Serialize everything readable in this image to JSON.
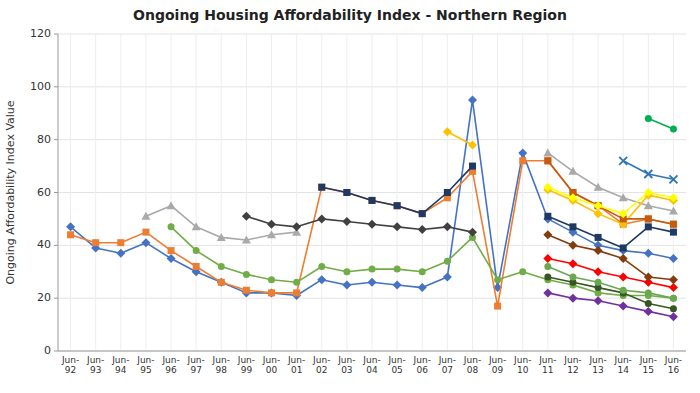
{
  "chart_data": {
    "type": "line",
    "title": "Ongoing Housing Affordability Index - Northern Region",
    "y_label": "Ongoing Affordability Index Value",
    "ylim": [
      0,
      120
    ],
    "yticks": [
      0,
      20,
      40,
      60,
      80,
      100,
      120
    ],
    "grid": true,
    "categories": [
      "Jun-\n92",
      "Jun-\n93",
      "Jun-\n94",
      "Jun-\n95",
      "Jun-\n96",
      "Jun-\n97",
      "Jun-\n98",
      "Jun-\n99",
      "Jun-\n00",
      "Jun-\n01",
      "Jun-\n02",
      "Jun-\n03",
      "Jun-\n04",
      "Jun-\n05",
      "Jun-\n06",
      "Jun-\n07",
      "Jun-\n08",
      "Jun-\n09",
      "Jun-\n10",
      "Jun-\n11",
      "Jun-\n12",
      "Jun-\n13",
      "Jun-\n14",
      "Jun-\n15",
      "Jun-\n16"
    ],
    "series": [
      {
        "color": "#4472C4",
        "marker": "diamond",
        "values": [
          47,
          39,
          37,
          41,
          35,
          30,
          26,
          22,
          22,
          21,
          27,
          25,
          26,
          25,
          24,
          28,
          95,
          24,
          75,
          50,
          45,
          40,
          38,
          37,
          35
        ]
      },
      {
        "color": "#ED7D31",
        "marker": "square",
        "values": [
          44,
          41,
          41,
          45,
          38,
          32,
          26,
          23,
          22,
          22,
          62,
          60,
          57,
          55,
          52,
          58,
          68,
          17,
          72,
          72,
          60,
          55,
          48,
          50,
          48
        ]
      },
      {
        "color": "#A9A9A9",
        "marker": "triangle",
        "values": [
          null,
          null,
          null,
          51,
          55,
          47,
          43,
          42,
          44,
          45,
          null,
          null,
          null,
          null,
          null,
          null,
          null,
          null,
          null,
          75,
          68,
          62,
          58,
          55,
          53
        ]
      },
      {
        "color": "#FFC000",
        "marker": "diamond",
        "values": [
          null,
          null,
          null,
          null,
          null,
          null,
          null,
          null,
          null,
          null,
          null,
          null,
          null,
          null,
          null,
          83,
          78,
          null,
          null,
          61,
          57,
          52,
          48,
          59,
          57
        ]
      },
      {
        "color": "#70AD47",
        "marker": "circle",
        "values": [
          null,
          null,
          null,
          null,
          47,
          38,
          32,
          29,
          27,
          26,
          32,
          30,
          31,
          31,
          30,
          34,
          43,
          27,
          30,
          27,
          25,
          22,
          21,
          21,
          20
        ]
      },
      {
        "color": "#1F3864",
        "marker": "square",
        "values": [
          null,
          null,
          null,
          null,
          null,
          null,
          null,
          null,
          null,
          null,
          62,
          60,
          57,
          55,
          52,
          60,
          70,
          null,
          null,
          51,
          47,
          43,
          39,
          47,
          45
        ]
      },
      {
        "color": "#404040",
        "marker": "diamond",
        "values": [
          null,
          null,
          null,
          null,
          null,
          null,
          null,
          51,
          48,
          47,
          50,
          49,
          48,
          47,
          46,
          47,
          45,
          null,
          null,
          null,
          null,
          null,
          null,
          null,
          null
        ]
      },
      {
        "color": "#C55A11",
        "marker": "square",
        "values": [
          null,
          null,
          null,
          null,
          null,
          null,
          null,
          null,
          null,
          null,
          null,
          null,
          null,
          null,
          null,
          null,
          null,
          null,
          null,
          72,
          60,
          55,
          50,
          50,
          48
        ]
      },
      {
        "color": "#2E75B6",
        "marker": "x",
        "values": [
          null,
          null,
          null,
          null,
          null,
          null,
          null,
          null,
          null,
          null,
          null,
          null,
          null,
          null,
          null,
          null,
          null,
          null,
          null,
          null,
          null,
          null,
          72,
          67,
          65
        ]
      },
      {
        "color": "#00B050",
        "marker": "circle",
        "values": [
          null,
          null,
          null,
          null,
          null,
          null,
          null,
          null,
          null,
          null,
          null,
          null,
          null,
          null,
          null,
          null,
          null,
          null,
          null,
          null,
          null,
          null,
          null,
          88,
          84
        ]
      },
      {
        "color": "#FF0000",
        "marker": "diamond",
        "values": [
          null,
          null,
          null,
          null,
          null,
          null,
          null,
          null,
          null,
          null,
          null,
          null,
          null,
          null,
          null,
          null,
          null,
          null,
          null,
          35,
          33,
          30,
          28,
          26,
          24
        ]
      },
      {
        "color": "#FFFF00",
        "marker": "diamond",
        "values": [
          null,
          null,
          null,
          null,
          null,
          null,
          null,
          null,
          null,
          null,
          null,
          null,
          null,
          null,
          null,
          null,
          null,
          null,
          null,
          62,
          58,
          55,
          52,
          60,
          58
        ]
      },
      {
        "color": "#843C0C",
        "marker": "diamond",
        "values": [
          null,
          null,
          null,
          null,
          null,
          null,
          null,
          null,
          null,
          null,
          null,
          null,
          null,
          null,
          null,
          null,
          null,
          null,
          null,
          44,
          40,
          38,
          35,
          28,
          27
        ]
      },
      {
        "color": "#375623",
        "marker": "circle",
        "values": [
          null,
          null,
          null,
          null,
          null,
          null,
          null,
          null,
          null,
          null,
          null,
          null,
          null,
          null,
          null,
          null,
          null,
          null,
          null,
          28,
          26,
          24,
          22,
          18,
          16
        ]
      },
      {
        "color": "#7030A0",
        "marker": "diamond",
        "values": [
          null,
          null,
          null,
          null,
          null,
          null,
          null,
          null,
          null,
          null,
          null,
          null,
          null,
          null,
          null,
          null,
          null,
          null,
          null,
          22,
          20,
          19,
          17,
          15,
          13
        ]
      },
      {
        "color": "#D6B656",
        "marker": "diamond",
        "values": [
          null,
          null,
          null,
          null,
          null,
          null,
          null,
          null,
          null,
          null,
          null,
          null,
          null,
          null,
          null,
          null,
          null,
          null,
          null,
          null,
          null,
          null,
          null,
          null,
          null
        ]
      },
      {
        "color": "#6AA84F",
        "marker": "circle",
        "values": [
          null,
          null,
          null,
          null,
          null,
          null,
          null,
          null,
          null,
          null,
          null,
          null,
          null,
          null,
          null,
          null,
          null,
          null,
          null,
          32,
          28,
          26,
          23,
          22,
          20
        ]
      },
      {
        "color": "#274E13",
        "marker": "circle",
        "values": [
          null,
          null,
          null,
          null,
          null,
          null,
          null,
          null,
          null,
          null,
          null,
          null,
          null,
          null,
          null,
          null,
          null,
          null,
          null,
          null,
          null,
          null,
          null,
          null,
          null
        ]
      },
      {
        "color": "#9FC5E8",
        "marker": "diamond",
        "values": [
          null,
          null,
          null,
          null,
          null,
          null,
          null,
          null,
          null,
          null,
          null,
          null,
          null,
          null,
          null,
          null,
          null,
          null,
          null,
          null,
          null,
          null,
          null,
          null,
          null
        ]
      },
      {
        "color": "#B7B7B7",
        "marker": "triangle",
        "values": [
          null,
          null,
          null,
          null,
          null,
          null,
          null,
          null,
          null,
          null,
          null,
          null,
          null,
          null,
          null,
          null,
          null,
          null,
          null,
          null,
          null,
          null,
          null,
          null,
          null
        ]
      }
    ]
  }
}
